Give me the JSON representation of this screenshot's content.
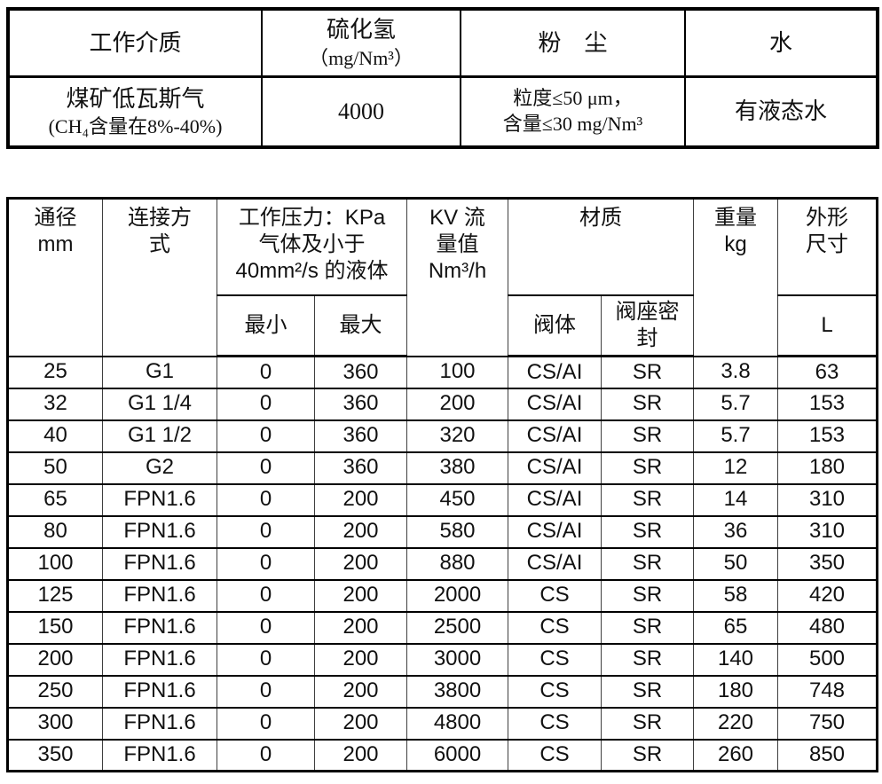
{
  "media_table": {
    "header": {
      "medium": "工作介质",
      "h2s": "硫化氢",
      "h2s_unit": "（mg/Nm³）",
      "dust": "粉　尘",
      "water": "水"
    },
    "row": {
      "medium_line1": "煤矿低瓦斯气",
      "medium_line2": "(CH₄含量在8%-40%)",
      "h2s_value": "4000",
      "dust_line1": "粒度≤50 μm，",
      "dust_line2": "含量≤30 mg/Nm³",
      "water_value": "有液态水"
    }
  },
  "spec_table": {
    "header": {
      "dn": "通径\nmm",
      "connection": "连接方\n式",
      "pressure": "工作压力：KPa\n气体及小于\n40mm²/s 的液体",
      "pressure_min": "最小",
      "pressure_max": "最大",
      "kv": "KV 流\n量值\nNm³/h",
      "material": "材质",
      "material_body": "阀体",
      "material_seat": "阀座密\n封",
      "weight": "重量\nkg",
      "dimensions": "外形\n尺寸",
      "dimensions_l": "L"
    },
    "rows": [
      [
        "25",
        "G1",
        "0",
        "360",
        "100",
        "CS/AI",
        "SR",
        "3.8",
        "63"
      ],
      [
        "32",
        "G1 1/4",
        "0",
        "360",
        "200",
        "CS/AI",
        "SR",
        "5.7",
        "153"
      ],
      [
        "40",
        "G1 1/2",
        "0",
        "360",
        "320",
        "CS/AI",
        "SR",
        "5.7",
        "153"
      ],
      [
        "50",
        "G2",
        "0",
        "360",
        "380",
        "CS/AI",
        "SR",
        "12",
        "180"
      ],
      [
        "65",
        "FPN1.6",
        "0",
        "200",
        "450",
        "CS/AI",
        "SR",
        "14",
        "310"
      ],
      [
        "80",
        "FPN1.6",
        "0",
        "200",
        "580",
        "CS/AI",
        "SR",
        "36",
        "310"
      ],
      [
        "100",
        "FPN1.6",
        "0",
        "200",
        "880",
        "CS/AI",
        "SR",
        "50",
        "350"
      ],
      [
        "125",
        "FPN1.6",
        "0",
        "200",
        "2000",
        "CS",
        "SR",
        "58",
        "420"
      ],
      [
        "150",
        "FPN1.6",
        "0",
        "200",
        "2500",
        "CS",
        "SR",
        "65",
        "480"
      ],
      [
        "200",
        "FPN1.6",
        "0",
        "200",
        "3000",
        "CS",
        "SR",
        "140",
        "500"
      ],
      [
        "250",
        "FPN1.6",
        "0",
        "200",
        "3800",
        "CS",
        "SR",
        "180",
        "748"
      ],
      [
        "300",
        "FPN1.6",
        "0",
        "200",
        "4800",
        "CS",
        "SR",
        "220",
        "750"
      ],
      [
        "350",
        "FPN1.6",
        "0",
        "200",
        "6000",
        "CS",
        "SR",
        "260",
        "850"
      ]
    ]
  },
  "colors": {
    "border": "#000000",
    "text": "#111111",
    "background": "#ffffff"
  }
}
